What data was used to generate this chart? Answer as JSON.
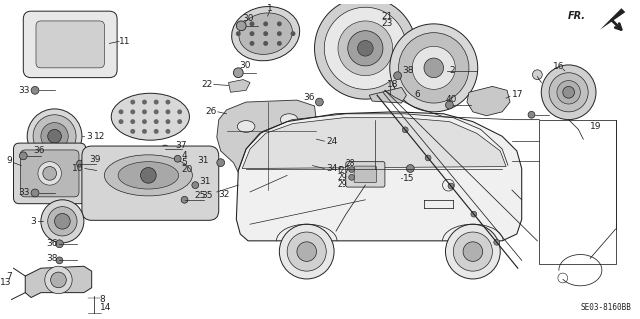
{
  "bg_color": "#ffffff",
  "diagram_code": "SE03-8160BB",
  "fr_label": "FR.",
  "fig_width": 6.4,
  "fig_height": 3.19,
  "dpi": 100
}
